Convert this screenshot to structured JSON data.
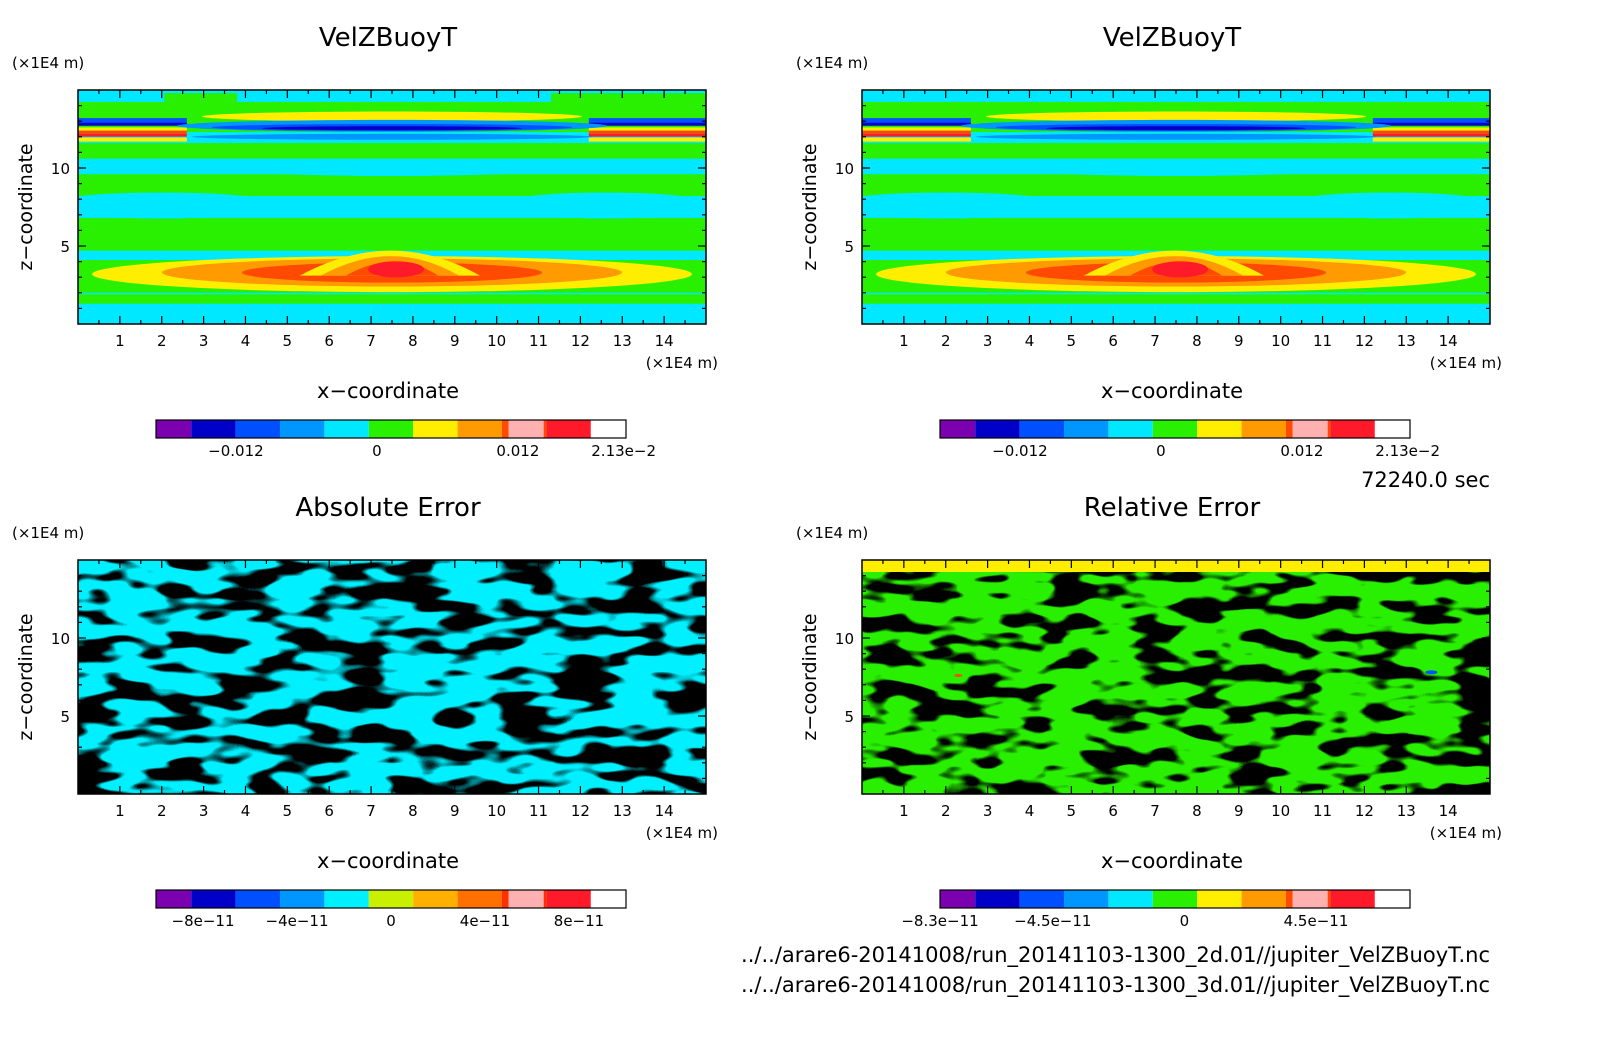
{
  "time_label": "72240.0 sec",
  "file_paths": [
    "../../arare6-20141008/run_20141103-1300_2d.01//jupiter_VelZBuoyT.nc",
    "../../arare6-20141008/run_20141103-1300_3d.01//jupiter_VelZBuoyT.nc"
  ],
  "colors": {
    "palette": [
      "#7a00b0",
      "#0000c8",
      "#0050ff",
      "#0096ff",
      "#00e8ff",
      "#28f000",
      "#ffee00",
      "#ff9a00",
      "#ff4a00",
      "#ff1a2a",
      "#ffb0b0"
    ],
    "abs_error_palette": [
      "#7a00b0",
      "#0000c8",
      "#0050ff",
      "#0096ff",
      "#00f0ff",
      "#c8f000",
      "#ffb000",
      "#ff7000",
      "#ff3000",
      "#ff1a2a",
      "#ffb0b0"
    ]
  },
  "chart_data": [
    {
      "type": "heatmap",
      "title": "VelZBuoyT",
      "xlabel": "x−coordinate",
      "ylabel": "z−coordinate",
      "x_unit": "(×1E4 m)",
      "y_unit": "(×1E4 m)",
      "xlim": [
        0,
        15
      ],
      "ylim": [
        0,
        15
      ],
      "x_ticks": [
        "1",
        "2",
        "3",
        "4",
        "5",
        "6",
        "7",
        "8",
        "9",
        "10",
        "11",
        "12",
        "13",
        "14"
      ],
      "y_ticks": [
        "5",
        "10"
      ],
      "colorbar_labels": [
        "−0.012",
        "0",
        "0.012",
        "2.13e−2"
      ],
      "field": "buoy"
    },
    {
      "type": "heatmap",
      "title": "VelZBuoyT",
      "xlabel": "x−coordinate",
      "ylabel": "z−coordinate",
      "x_unit": "(×1E4 m)",
      "y_unit": "(×1E4 m)",
      "xlim": [
        0,
        15
      ],
      "ylim": [
        0,
        15
      ],
      "x_ticks": [
        "1",
        "2",
        "3",
        "4",
        "5",
        "6",
        "7",
        "8",
        "9",
        "10",
        "11",
        "12",
        "13",
        "14"
      ],
      "y_ticks": [
        "5",
        "10"
      ],
      "colorbar_labels": [
        "−0.012",
        "0",
        "0.012",
        "2.13e−2"
      ],
      "field": "buoy"
    },
    {
      "type": "heatmap",
      "title": "Absolute Error",
      "xlabel": "x−coordinate",
      "ylabel": "z−coordinate",
      "x_unit": "(×1E4 m)",
      "y_unit": "(×1E4 m)",
      "xlim": [
        0,
        15
      ],
      "ylim": [
        0,
        15
      ],
      "x_ticks": [
        "1",
        "2",
        "3",
        "4",
        "5",
        "6",
        "7",
        "8",
        "9",
        "10",
        "11",
        "12",
        "13",
        "14"
      ],
      "y_ticks": [
        "5",
        "10"
      ],
      "colorbar_labels": [
        "−8e−11",
        "−4e−11",
        "0",
        "4e−11",
        "8e−11"
      ],
      "field": "abs"
    },
    {
      "type": "heatmap",
      "title": "Relative Error",
      "xlabel": "x−coordinate",
      "ylabel": "z−coordinate",
      "x_unit": "(×1E4 m)",
      "y_unit": "(×1E4 m)",
      "xlim": [
        0,
        15
      ],
      "ylim": [
        0,
        15
      ],
      "x_ticks": [
        "1",
        "2",
        "3",
        "4",
        "5",
        "6",
        "7",
        "8",
        "9",
        "10",
        "11",
        "12",
        "13",
        "14"
      ],
      "y_ticks": [
        "5",
        "10"
      ],
      "colorbar_labels": [
        "−8.3e−11",
        "−4.5e−11",
        "0",
        "4.5e−11"
      ],
      "field": "rel"
    }
  ]
}
